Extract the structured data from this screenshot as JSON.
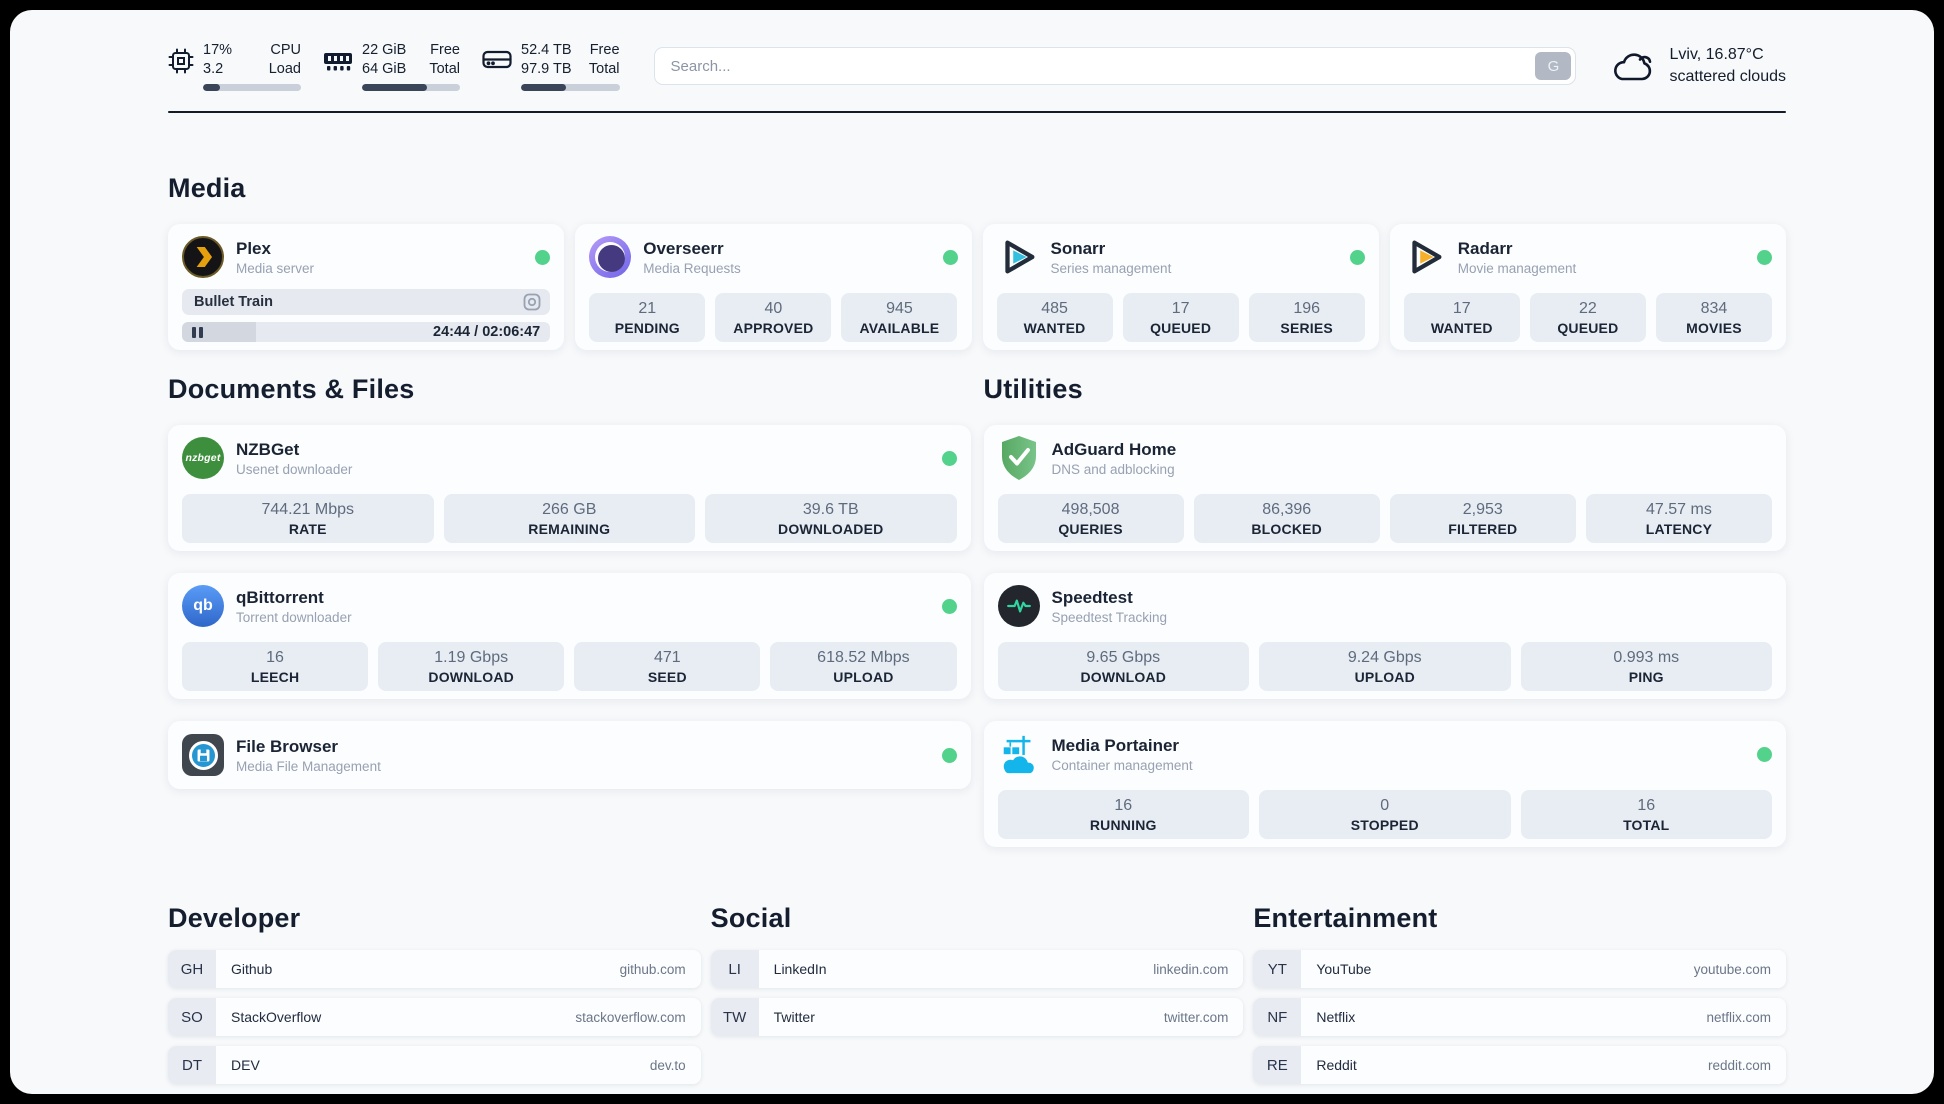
{
  "colors": {
    "status_online": "#53d28c",
    "header_divider": "#141c2a",
    "plex_yellow": "#e5a00d",
    "sonarr_cyan": "#33c0e0",
    "radarr_orange": "#f6b02c",
    "adguard_green": "#67b279",
    "portainer_blue": "#13b5ea",
    "qbittorrent_blue": "#2f67c8",
    "nzbget_green": "#3d8f3d"
  },
  "header": {
    "cpu": {
      "value_line1": "17%",
      "value_line2": "3.2",
      "label_line1": "CPU",
      "label_line2": "Load",
      "progress_pct": 17
    },
    "ram": {
      "value_line1": "22 GiB",
      "value_line2": "64 GiB",
      "label_line1": "Free",
      "label_line2": "Total",
      "progress_pct": 66
    },
    "disk": {
      "value_line1": "52.4 TB",
      "value_line2": "97.9 TB",
      "label_line1": "Free",
      "label_line2": "Total",
      "progress_pct": 46
    },
    "search": {
      "placeholder": "Search...",
      "button_label": "G"
    },
    "weather": {
      "location": "Lviv, 16.87°C",
      "condition": "scattered clouds"
    }
  },
  "media": {
    "title": "Media",
    "plex": {
      "name": "Plex",
      "subtitle": "Media server",
      "now_playing": "Bullet Train",
      "time": "24:44 / 02:06:47",
      "progress_pct": 20
    },
    "overseerr": {
      "name": "Overseerr",
      "subtitle": "Media Requests",
      "stats": [
        {
          "value": "21",
          "label": "PENDING"
        },
        {
          "value": "40",
          "label": "APPROVED"
        },
        {
          "value": "945",
          "label": "AVAILABLE"
        }
      ]
    },
    "sonarr": {
      "name": "Sonarr",
      "subtitle": "Series management",
      "stats": [
        {
          "value": "485",
          "label": "WANTED"
        },
        {
          "value": "17",
          "label": "QUEUED"
        },
        {
          "value": "196",
          "label": "SERIES"
        }
      ]
    },
    "radarr": {
      "name": "Radarr",
      "subtitle": "Movie management",
      "stats": [
        {
          "value": "17",
          "label": "WANTED"
        },
        {
          "value": "22",
          "label": "QUEUED"
        },
        {
          "value": "834",
          "label": "MOVIES"
        }
      ]
    }
  },
  "documents": {
    "title": "Documents & Files",
    "nzbget": {
      "name": "NZBGet",
      "subtitle": "Usenet downloader",
      "logo_text": "nzbget",
      "stats": [
        {
          "value": "744.21 Mbps",
          "label": "RATE"
        },
        {
          "value": "266 GB",
          "label": "REMAINING"
        },
        {
          "value": "39.6 TB",
          "label": "DOWNLOADED"
        }
      ]
    },
    "qbittorrent": {
      "name": "qBittorrent",
      "subtitle": "Torrent downloader",
      "logo_text": "qb",
      "stats": [
        {
          "value": "16",
          "label": "LEECH"
        },
        {
          "value": "1.19 Gbps",
          "label": "DOWNLOAD"
        },
        {
          "value": "471",
          "label": "SEED"
        },
        {
          "value": "618.52 Mbps",
          "label": "UPLOAD"
        }
      ]
    },
    "filebrowser": {
      "name": "File Browser",
      "subtitle": "Media File Management"
    }
  },
  "utilities": {
    "title": "Utilities",
    "adguard": {
      "name": "AdGuard Home",
      "subtitle": "DNS and adblocking",
      "stats": [
        {
          "value": "498,508",
          "label": "QUERIES"
        },
        {
          "value": "86,396",
          "label": "BLOCKED"
        },
        {
          "value": "2,953",
          "label": "FILTERED"
        },
        {
          "value": "47.57 ms",
          "label": "LATENCY"
        }
      ]
    },
    "speedtest": {
      "name": "Speedtest",
      "subtitle": "Speedtest Tracking",
      "stats": [
        {
          "value": "9.65 Gbps",
          "label": "DOWNLOAD"
        },
        {
          "value": "9.24 Gbps",
          "label": "UPLOAD"
        },
        {
          "value": "0.993 ms",
          "label": "PING"
        }
      ]
    },
    "portainer": {
      "name": "Media Portainer",
      "subtitle": "Container management",
      "stats": [
        {
          "value": "16",
          "label": "RUNNING"
        },
        {
          "value": "0",
          "label": "STOPPED"
        },
        {
          "value": "16",
          "label": "TOTAL"
        }
      ]
    }
  },
  "bookmarks": {
    "developer": {
      "title": "Developer",
      "links": [
        {
          "abbr": "GH",
          "name": "Github",
          "url": "github.com"
        },
        {
          "abbr": "SO",
          "name": "StackOverflow",
          "url": "stackoverflow.com"
        },
        {
          "abbr": "DT",
          "name": "DEV",
          "url": "dev.to"
        }
      ]
    },
    "social": {
      "title": "Social",
      "links": [
        {
          "abbr": "LI",
          "name": "LinkedIn",
          "url": "linkedin.com"
        },
        {
          "abbr": "TW",
          "name": "Twitter",
          "url": "twitter.com"
        }
      ]
    },
    "entertainment": {
      "title": "Entertainment",
      "links": [
        {
          "abbr": "YT",
          "name": "YouTube",
          "url": "youtube.com"
        },
        {
          "abbr": "NF",
          "name": "Netflix",
          "url": "netflix.com"
        },
        {
          "abbr": "RE",
          "name": "Reddit",
          "url": "reddit.com"
        }
      ]
    }
  }
}
